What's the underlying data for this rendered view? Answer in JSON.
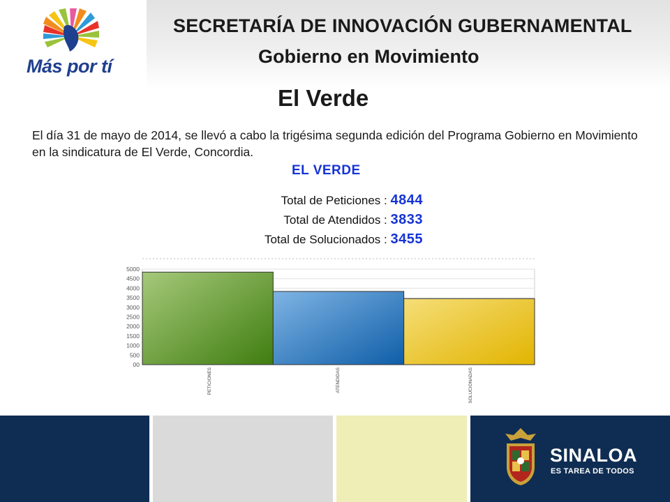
{
  "header": {
    "logo_text": "Más por tí",
    "title": "SECRETARÍA DE INNOVACIÓN GUBERNAMENTAL",
    "subtitle": "Gobierno en Movimiento"
  },
  "page": {
    "title": "El Verde",
    "intro": "El día 31 de mayo de 2014, se llevó a cabo la trigésima segunda edición del Programa Gobierno en Movimiento en la sindicatura de El Verde, Concordia."
  },
  "summary": {
    "heading": "EL VERDE",
    "rows": [
      {
        "label": "Total de Peticiones :",
        "value": "4844"
      },
      {
        "label": "Total de Atendidos :",
        "value": "3833"
      },
      {
        "label": "Total de Solucionados :",
        "value": "3455"
      }
    ]
  },
  "chart_data": {
    "type": "bar",
    "title": "",
    "xlabel": "",
    "ylabel": "",
    "categories": [
      "PETICIONES",
      "ATENDIDAS",
      "SOLUCIONADAS"
    ],
    "values": [
      4844,
      3833,
      3455
    ],
    "ylim": [
      0,
      5000
    ],
    "yticks": [
      "00",
      "500",
      "1000",
      "1500",
      "2000",
      "2500",
      "3000",
      "3500",
      "4000",
      "4500",
      "5000"
    ],
    "grid": true,
    "colors": [
      "#5e9a2a",
      "#2f7fc4",
      "#efc81f"
    ]
  },
  "footer": {
    "state": "SINALOA",
    "slogan": "ES TAREA DE TODOS",
    "colors": [
      "#0f2d52",
      "#dadada",
      "#eeeeb6",
      "#0f2d52"
    ]
  }
}
